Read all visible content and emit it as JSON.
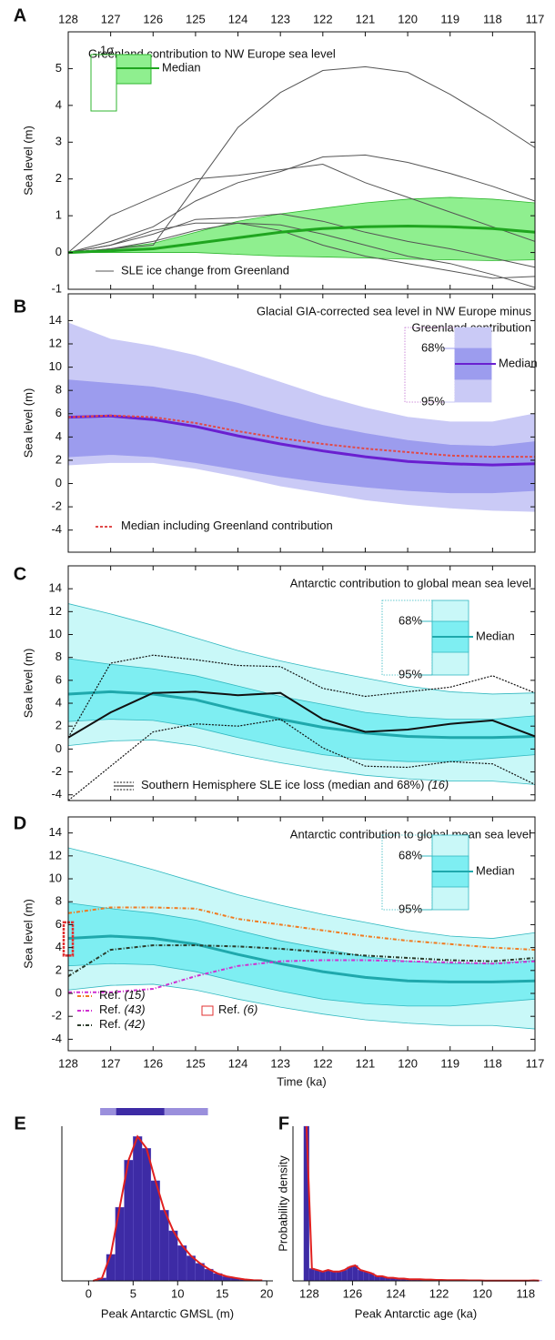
{
  "chart_data": [
    {
      "panel": "A",
      "type": "line",
      "title": [
        "Greenland contribution to NW Europe sea level"
      ],
      "title_align": "left",
      "ylabel": "Sea level (m)",
      "x": [
        128,
        127,
        126,
        125,
        124,
        123,
        122,
        121,
        120,
        119,
        118,
        117
      ],
      "xlim": [
        128,
        117
      ],
      "xticks": [
        128,
        127,
        126,
        125,
        124,
        123,
        122,
        121,
        120,
        119,
        118,
        117
      ],
      "xtick_labels": "top",
      "ylim": [
        -1,
        6
      ],
      "yticks": [
        -1,
        0,
        1,
        2,
        3,
        4,
        5
      ],
      "bands": [
        {
          "name": "1σ",
          "color": "#8fef8f",
          "edge": "#2fb52f",
          "lower": [
            0,
            0,
            0,
            0,
            -0.05,
            -0.1,
            -0.12,
            -0.15,
            -0.18,
            -0.2,
            -0.22,
            -0.2
          ],
          "upper": [
            0,
            0.1,
            0.25,
            0.55,
            0.85,
            1.05,
            1.2,
            1.35,
            1.45,
            1.5,
            1.45,
            1.35
          ]
        }
      ],
      "median": {
        "name": "Median",
        "color": "#1fa51f",
        "values": [
          0,
          0.05,
          0.1,
          0.25,
          0.4,
          0.55,
          0.65,
          0.7,
          0.72,
          0.7,
          0.65,
          0.55
        ]
      },
      "lines": {
        "name": "SLE ice change from Greenland",
        "color": "#555555",
        "series": [
          [
            0,
            0.1,
            0.2,
            1.8,
            3.4,
            4.35,
            4.95,
            5.05,
            4.9,
            4.3,
            3.6,
            2.85
          ],
          [
            0,
            1.0,
            1.5,
            2.0,
            2.1,
            2.25,
            2.4,
            1.9,
            1.5,
            1.1,
            0.7,
            0.3
          ],
          [
            0,
            0.3,
            0.7,
            1.4,
            1.9,
            2.2,
            2.6,
            2.65,
            2.45,
            2.15,
            1.8,
            1.4
          ],
          [
            0,
            0.2,
            0.5,
            0.9,
            0.95,
            1.05,
            0.85,
            0.55,
            0.3,
            0.1,
            -0.15,
            -0.4
          ],
          [
            0,
            0.1,
            0.3,
            0.6,
            0.8,
            0.75,
            0.5,
            0.2,
            -0.1,
            -0.3,
            -0.6,
            -0.95
          ],
          [
            0,
            0.2,
            0.6,
            0.8,
            0.8,
            0.6,
            0.2,
            -0.1,
            -0.3,
            -0.5,
            -0.7,
            -0.65
          ]
        ]
      }
    },
    {
      "panel": "B",
      "type": "line",
      "title": [
        "Glacial GIA-corrected sea level in NW Europe minus",
        "Greenland contribution"
      ],
      "title_align": "right",
      "ylabel": "Sea level (m)",
      "x": [
        128,
        127,
        126,
        125,
        124,
        123,
        122,
        121,
        120,
        119,
        118,
        117
      ],
      "xlim": [
        128,
        117
      ],
      "xticks": [
        128,
        127,
        126,
        125,
        124,
        123,
        122,
        121,
        120,
        119,
        118,
        117
      ],
      "ylim": [
        -5.9,
        16.3
      ],
      "yticks": [
        -4,
        -2,
        0,
        2,
        4,
        6,
        8,
        10,
        12,
        14
      ],
      "bands": [
        {
          "name": "95%",
          "color": "#cacaf6",
          "edge": "#cacaf6",
          "lower": [
            1.6,
            1.8,
            1.8,
            1.3,
            0.6,
            -0.2,
            -0.8,
            -1.4,
            -1.8,
            -2.1,
            -2.3,
            -2.4
          ],
          "upper": [
            13.8,
            12.4,
            11.8,
            11.0,
            9.9,
            8.7,
            7.5,
            6.5,
            5.7,
            5.3,
            5.3,
            6.0
          ]
        },
        {
          "name": "68%",
          "color": "#9c9cee",
          "edge": "#9c9cee",
          "lower": [
            2.3,
            2.5,
            2.3,
            1.8,
            1.2,
            0.6,
            0.1,
            -0.3,
            -0.6,
            -0.8,
            -0.8,
            -0.6
          ],
          "upper": [
            8.9,
            8.6,
            8.3,
            7.7,
            6.9,
            5.9,
            5.0,
            4.3,
            3.7,
            3.3,
            3.2,
            3.6
          ]
        }
      ],
      "median": {
        "name": "Median",
        "color": "#6a1fd0",
        "values": [
          5.7,
          5.8,
          5.5,
          4.9,
          4.1,
          3.4,
          2.8,
          2.3,
          1.9,
          1.7,
          1.6,
          1.7
        ]
      },
      "overlays": [
        {
          "name": "Median including Greenland contribution",
          "color": "#e04a4a",
          "dash": "3 2",
          "values": [
            5.7,
            5.85,
            5.7,
            5.2,
            4.5,
            3.9,
            3.4,
            3.0,
            2.7,
            2.4,
            2.3,
            2.3
          ]
        }
      ]
    },
    {
      "panel": "C",
      "type": "line",
      "title": [
        "Antarctic contribution to global mean sea level"
      ],
      "title_align": "right",
      "ylabel": "Sea level (m)",
      "x": [
        128,
        127,
        126,
        125,
        124,
        123,
        122,
        121,
        120,
        119,
        118,
        117
      ],
      "xlim": [
        128,
        117
      ],
      "xticks": [
        128,
        127,
        126,
        125,
        124,
        123,
        122,
        121,
        120,
        119,
        118,
        117
      ],
      "ylim": [
        -4.5,
        16
      ],
      "yticks": [
        -4,
        -2,
        0,
        2,
        4,
        6,
        8,
        10,
        12,
        14
      ],
      "bands": [
        {
          "name": "95%",
          "color": "#c9f8f8",
          "edge": "#33b8c0",
          "lower": [
            0.3,
            0.7,
            0.8,
            0.3,
            -0.5,
            -1.2,
            -1.8,
            -2.3,
            -2.6,
            -2.8,
            -2.8,
            -3.1
          ],
          "upper": [
            12.7,
            11.8,
            10.8,
            9.7,
            8.6,
            7.7,
            6.9,
            6.2,
            5.5,
            5.0,
            4.8,
            4.9
          ]
        },
        {
          "name": "68%",
          "color": "#7eeef2",
          "edge": "#33b8c0",
          "lower": [
            2.4,
            2.6,
            2.5,
            1.9,
            1.0,
            0.2,
            -0.5,
            -0.9,
            -1.1,
            -1.1,
            -0.8,
            -0.5
          ],
          "upper": [
            7.9,
            7.4,
            7.0,
            6.4,
            5.5,
            4.6,
            3.9,
            3.2,
            2.8,
            2.6,
            2.6,
            2.9
          ]
        }
      ],
      "median": {
        "name": "Median",
        "color": "#1fa8ac",
        "values": [
          4.8,
          5.0,
          4.8,
          4.3,
          3.4,
          2.6,
          1.9,
          1.4,
          1.1,
          1.0,
          1.0,
          1.1
        ]
      },
      "sh_ice": {
        "name": "Southern Hemisphere SLE ice loss (median and 68%)",
        "ref": "(16)",
        "color": "#111111",
        "median": [
          1.0,
          3.2,
          4.9,
          5.0,
          4.7,
          4.9,
          2.6,
          1.5,
          1.7,
          2.2,
          2.5,
          1.1
        ],
        "lower": [
          -4.5,
          -1.5,
          1.5,
          2.2,
          2.0,
          2.6,
          0.1,
          -1.5,
          -1.6,
          -1.1,
          -1.3,
          -3.1
        ],
        "upper": [
          1.0,
          7.5,
          8.2,
          7.8,
          7.3,
          7.2,
          5.3,
          4.6,
          5.0,
          5.4,
          6.4,
          4.9
        ]
      }
    },
    {
      "panel": "D",
      "type": "line",
      "title": [
        "Antarctic contribution to global mean sea level"
      ],
      "title_align": "right",
      "ylabel": "Sea level (m)",
      "xlabel": "Time (ka)",
      "x": [
        128,
        127,
        126,
        125,
        124,
        123,
        122,
        121,
        120,
        119,
        118,
        117
      ],
      "xlim": [
        128,
        117
      ],
      "xticks": [
        128,
        127,
        126,
        125,
        124,
        123,
        122,
        121,
        120,
        119,
        118,
        117
      ],
      "xtick_labels": "bottom",
      "ylim": [
        -5,
        15.4
      ],
      "yticks": [
        -4,
        -2,
        0,
        2,
        4,
        6,
        8,
        10,
        12,
        14
      ],
      "bands": [
        {
          "name": "95%",
          "color": "#c9f8f8",
          "edge": "#33b8c0",
          "lower": [
            0.3,
            0.7,
            0.8,
            0.3,
            -0.5,
            -1.2,
            -1.8,
            -2.3,
            -2.6,
            -2.8,
            -2.8,
            -3.1
          ],
          "upper": [
            12.7,
            11.8,
            10.8,
            9.7,
            8.6,
            7.7,
            6.9,
            6.2,
            5.5,
            5.0,
            4.8,
            5.3
          ]
        },
        {
          "name": "68%",
          "color": "#7eeef2",
          "edge": "#33b8c0",
          "lower": [
            2.4,
            2.6,
            2.5,
            1.9,
            1.0,
            0.2,
            -0.5,
            -0.9,
            -1.1,
            -1.1,
            -0.8,
            -0.5
          ],
          "upper": [
            7.9,
            7.4,
            7.0,
            6.4,
            5.5,
            4.6,
            3.9,
            3.2,
            2.8,
            2.6,
            2.6,
            2.9
          ]
        }
      ],
      "median": {
        "name": "Median",
        "color": "#1fa8ac",
        "values": [
          4.8,
          5.0,
          4.8,
          4.3,
          3.4,
          2.6,
          1.9,
          1.4,
          1.1,
          1.0,
          1.0,
          1.1
        ]
      },
      "overlays": [
        {
          "name": "Ref.",
          "ref": "(15)",
          "color": "#f07a20",
          "dash": "4 2 1 2",
          "values": [
            7.0,
            7.5,
            7.5,
            7.4,
            6.5,
            6.0,
            5.5,
            5.0,
            4.6,
            4.3,
            4.0,
            3.8
          ]
        },
        {
          "name": "Ref.",
          "ref": "(43)",
          "color": "#d030d0",
          "dash": "4 2 1 2",
          "values": [
            0.1,
            0.1,
            0.4,
            1.5,
            2.4,
            2.8,
            2.9,
            2.9,
            2.8,
            2.7,
            2.6,
            2.8
          ]
        },
        {
          "name": "Ref.",
          "ref": "(42)",
          "color": "#2a3a2a",
          "dash": "4 2 1 2",
          "values": [
            1.5,
            3.8,
            4.2,
            4.2,
            4.1,
            3.9,
            3.6,
            3.3,
            3.1,
            2.9,
            2.8,
            3.1
          ]
        }
      ],
      "box": {
        "name": "Ref.",
        "ref": "(6)",
        "color": "#e03030",
        "x": 128,
        "lower": 3.3,
        "upper": 6.2
      }
    },
    {
      "panel": "E",
      "type": "histogram",
      "xlabel": "Peak Antarctic GMSL (m)",
      "bins": [
        0,
        1,
        2,
        3,
        4,
        5,
        6,
        7,
        8,
        9,
        10,
        11,
        12,
        13,
        14,
        15,
        16,
        17,
        18,
        19,
        20
      ],
      "values": [
        0,
        2,
        18,
        50,
        82,
        98,
        90,
        68,
        48,
        34,
        24,
        17,
        12,
        8,
        5,
        3,
        2,
        1,
        0.5,
        0.3
      ],
      "color": "#3d2ba5",
      "curve_color": "#e02020",
      "xlim": [
        -3,
        20.7
      ],
      "xticks": [
        0,
        5,
        10,
        15,
        20
      ],
      "ylim": [
        0,
        105
      ],
      "intervals": [
        {
          "lower": 1.3,
          "upper": 13.4,
          "color": "#9a8fdc"
        },
        {
          "lower": 3.1,
          "upper": 8.5,
          "color": "#3d2ba5"
        }
      ]
    },
    {
      "panel": "F",
      "type": "histogram",
      "xlabel": "Peak Antarctic age (ka)",
      "ylabel": "Probability density",
      "bins": [
        128.25,
        128,
        127.75,
        127.5,
        127.25,
        127,
        126.75,
        126.5,
        126.25,
        126,
        125.75,
        125.5,
        125.25,
        125,
        124.75,
        124.5,
        124.25,
        124,
        123.75,
        123.5,
        123.25,
        123,
        122.75,
        122.5,
        122.25,
        122,
        121.75,
        121.5,
        121.25,
        121,
        120.75,
        120.5,
        120.25,
        120,
        119.75,
        119.5,
        119.25,
        119,
        118.75,
        118.5,
        118.25,
        118,
        117.75,
        117.5,
        117.25
      ],
      "values": [
        100,
        8,
        7,
        6,
        7,
        6,
        6,
        7,
        9,
        10,
        7,
        6,
        5,
        3,
        3,
        2,
        2,
        1.5,
        1.5,
        1,
        1,
        1,
        0.8,
        0.8,
        0.6,
        0.6,
        0.5,
        0.5,
        0.4,
        0.4,
        0.3,
        0.3,
        0.3,
        0.2,
        0.2,
        0.2,
        0.2,
        0.1,
        0.1,
        0.1,
        0.1,
        0.2,
        0.3,
        0.1
      ],
      "color": "#3d2ba5",
      "curve_color": "#e02020",
      "xlim": [
        128.75,
        117.4
      ],
      "xticks": [
        128,
        126,
        124,
        122,
        120,
        118
      ],
      "ylim": [
        0,
        100
      ]
    }
  ]
}
